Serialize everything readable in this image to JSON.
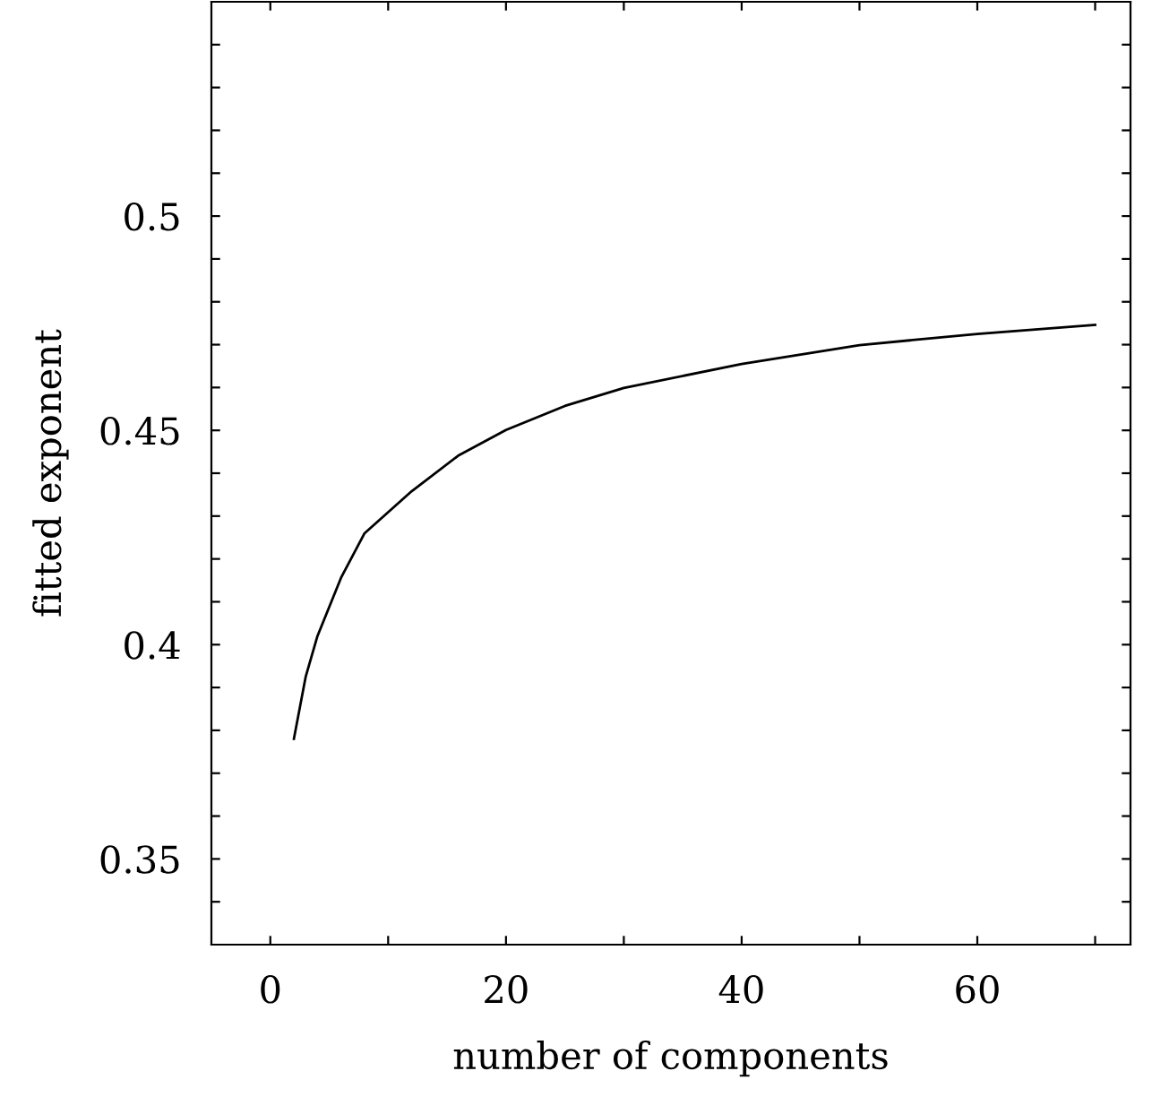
{
  "chart_data": {
    "type": "line",
    "xlabel": "number of components",
    "ylabel": "fitted exponent",
    "x": [
      2,
      3,
      4,
      6,
      8,
      12,
      16,
      20,
      25,
      30,
      40,
      50,
      60,
      70
    ],
    "series": [
      {
        "color": "#000000",
        "values": [
          0.378,
          0.3925,
          0.402,
          0.4156,
          0.426,
          0.4358,
          0.4442,
          0.4501,
          0.4557,
          0.4599,
          0.4655,
          0.4699,
          0.4725,
          0.4746
        ]
      }
    ],
    "xlim": [
      -5,
      73
    ],
    "xticks": [
      0,
      {
        "value": 10,
        "label": null
      },
      20,
      {
        "value": 30,
        "label": null
      },
      40,
      {
        "value": 50,
        "label": null
      },
      60,
      {
        "value": 70,
        "label": null
      }
    ],
    "ylim": [
      0.33,
      0.55
    ],
    "yticks": [
      {
        "value": 0.34,
        "label": null
      },
      0.35,
      {
        "value": 0.36,
        "label": null
      },
      {
        "value": 0.37,
        "label": null
      },
      {
        "value": 0.38,
        "label": null
      },
      {
        "value": 0.39,
        "label": null
      },
      0.4,
      {
        "value": 0.41,
        "label": null
      },
      {
        "value": 0.42,
        "label": null
      },
      {
        "value": 0.43,
        "label": null
      },
      {
        "value": 0.44,
        "label": null
      },
      0.45,
      {
        "value": 0.46,
        "label": null
      },
      {
        "value": 0.47,
        "label": null
      },
      {
        "value": 0.48,
        "label": null
      },
      {
        "value": 0.49,
        "label": null
      },
      0.5,
      {
        "value": 0.51,
        "label": null
      },
      {
        "value": 0.52,
        "label": null
      },
      {
        "value": 0.53,
        "label": null
      },
      {
        "value": 0.54,
        "label": null
      }
    ],
    "grid": false,
    "marker": "none",
    "line_style": "solid"
  }
}
